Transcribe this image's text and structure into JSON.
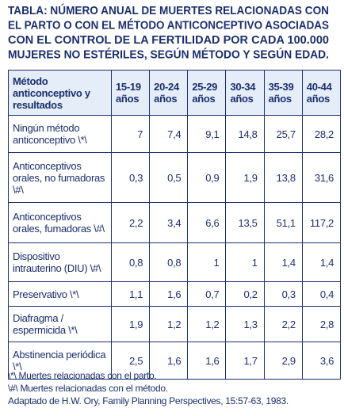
{
  "title": [
    "TABLA: NÚMERO ANUAL DE MUERTES RELACIONADAS CON",
    "EL PARTO O CON EL MÉTODO ANTICONCEPTIVO ASOCIADAS",
    "CON EL CONTROL DE LA FERTILIDAD POR CADA 100.000",
    "MUJERES NO ESTÉRILES, SEGÚN MÉTODO Y SEGÚN EDAD."
  ],
  "table": {
    "header": [
      "Método anticonceptivo y resultados",
      "15-19 años",
      "20-24 años",
      "25-29 años",
      "30-34 años",
      "35-39 años",
      "40-44 años"
    ],
    "rows": [
      [
        "Ningún método anticonceptivo \\*\\",
        "7",
        "7,4",
        "9,1",
        "14,8",
        "25,7",
        "28,2"
      ],
      [
        "Anticonceptivos orales, no fumadoras \\#\\",
        "0,3",
        "0,5",
        "0,9",
        "1,9",
        "13,8",
        "31,6"
      ],
      [
        "Anticonceptivos orales, fumadoras \\#\\",
        "2,2",
        "3,4",
        "6,6",
        "13,5",
        "51,1",
        "117,2"
      ],
      [
        "Dispositivo intrauterino (DIU) \\#\\",
        "0,8",
        "0,8",
        "1",
        "1",
        "1,4",
        "1,4"
      ],
      [
        "Preservativo \\*\\",
        "1,1",
        "1,6",
        "0,7",
        "0,2",
        "0,3",
        "0,4"
      ],
      [
        "Diafragma / espermicida \\*\\",
        "1,9",
        "1,2",
        "1,2",
        "1,3",
        "2,2",
        "2,8"
      ],
      [
        "Abstinencia periódica \\*\\",
        "2,5",
        "1,6",
        "1,6",
        "1,7",
        "2,9",
        "3,6"
      ]
    ]
  },
  "notes": [
    "\\*\\ Muertes relacionadas con el parto.",
    "\\#\\ Muertes relacionadas con el método.",
    "Adaptado de H.W. Ory, Family Planning Perspectives, 15:57-63, 1983."
  ]
}
